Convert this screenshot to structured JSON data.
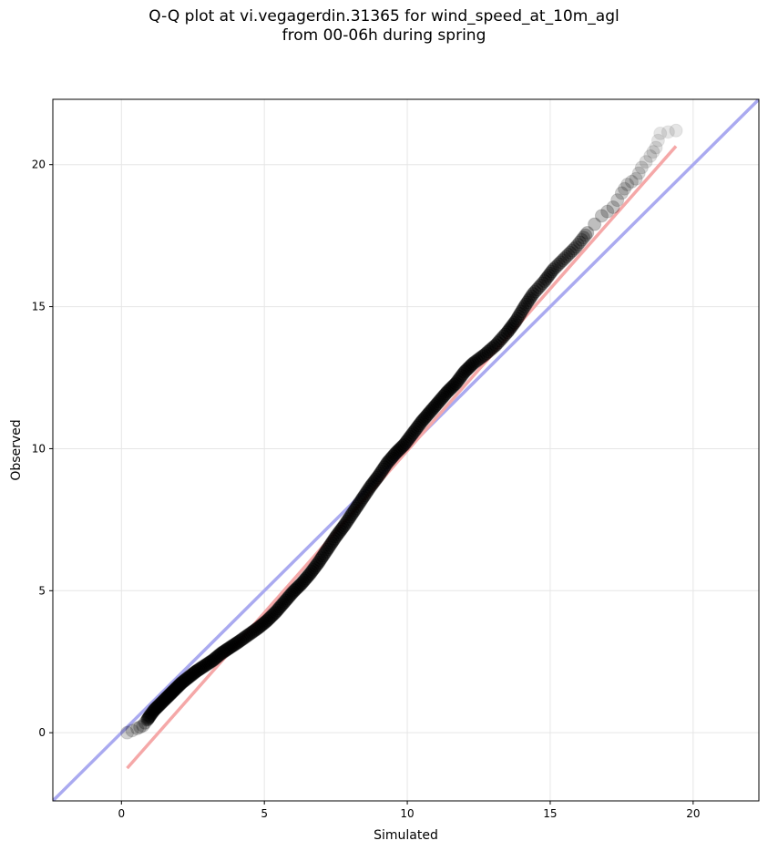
{
  "chart_data": {
    "type": "scatter",
    "title_line1": "Q-Q plot at vi.vegagerdin.31365 for wind_speed_at_10m_agl",
    "title_line2": "from 00-06h during spring",
    "xlabel": "Simulated",
    "ylabel": "Observed",
    "xlim": [
      -2.4,
      22.3
    ],
    "ylim": [
      -2.4,
      22.3
    ],
    "xticks": [
      0,
      5,
      10,
      15,
      20
    ],
    "yticks": [
      0,
      5,
      10,
      15,
      20
    ],
    "grid": true,
    "point_color": "#000000",
    "identity_line": {
      "color": "#aaaaf0",
      "from": [
        -2.4,
        -2.4
      ],
      "to": [
        22.3,
        22.3
      ]
    },
    "fit_line": {
      "color": "#f5a8a8",
      "from": [
        0.2,
        -1.25
      ],
      "to": [
        19.4,
        20.65
      ]
    },
    "quantiles": [
      [
        0.2,
        0.0
      ],
      [
        0.55,
        0.15
      ],
      [
        0.75,
        0.25
      ],
      [
        0.9,
        0.45
      ],
      [
        1.0,
        0.6
      ],
      [
        1.15,
        0.8
      ],
      [
        1.3,
        0.95
      ],
      [
        1.5,
        1.15
      ],
      [
        1.7,
        1.35
      ],
      [
        1.9,
        1.55
      ],
      [
        2.1,
        1.75
      ],
      [
        2.35,
        1.95
      ],
      [
        2.6,
        2.15
      ],
      [
        2.9,
        2.35
      ],
      [
        3.2,
        2.55
      ],
      [
        3.5,
        2.8
      ],
      [
        3.8,
        3.0
      ],
      [
        4.1,
        3.2
      ],
      [
        4.45,
        3.45
      ],
      [
        4.8,
        3.7
      ],
      [
        5.1,
        3.95
      ],
      [
        5.4,
        4.25
      ],
      [
        5.7,
        4.6
      ],
      [
        6.0,
        4.95
      ],
      [
        6.3,
        5.25
      ],
      [
        6.6,
        5.6
      ],
      [
        6.9,
        6.0
      ],
      [
        7.2,
        6.45
      ],
      [
        7.5,
        6.9
      ],
      [
        7.8,
        7.3
      ],
      [
        8.1,
        7.75
      ],
      [
        8.4,
        8.2
      ],
      [
        8.7,
        8.65
      ],
      [
        9.0,
        9.05
      ],
      [
        9.3,
        9.5
      ],
      [
        9.6,
        9.85
      ],
      [
        9.9,
        10.15
      ],
      [
        10.2,
        10.55
      ],
      [
        10.5,
        10.95
      ],
      [
        10.8,
        11.3
      ],
      [
        11.1,
        11.65
      ],
      [
        11.4,
        12.0
      ],
      [
        11.7,
        12.3
      ],
      [
        12.0,
        12.7
      ],
      [
        12.3,
        13.0
      ],
      [
        12.7,
        13.3
      ],
      [
        13.1,
        13.65
      ],
      [
        13.5,
        14.1
      ],
      [
        13.8,
        14.5
      ],
      [
        14.1,
        15.0
      ],
      [
        14.4,
        15.45
      ],
      [
        14.8,
        15.9
      ],
      [
        15.1,
        16.3
      ],
      [
        15.5,
        16.7
      ],
      [
        15.9,
        17.1
      ],
      [
        16.3,
        17.6
      ],
      [
        16.8,
        18.2
      ],
      [
        17.2,
        18.5
      ],
      [
        17.5,
        19.0
      ],
      [
        17.7,
        19.3
      ],
      [
        18.0,
        19.5
      ],
      [
        18.2,
        19.9
      ],
      [
        18.5,
        20.3
      ],
      [
        18.7,
        20.6
      ],
      [
        18.85,
        21.1
      ],
      [
        19.4,
        21.2
      ]
    ]
  }
}
